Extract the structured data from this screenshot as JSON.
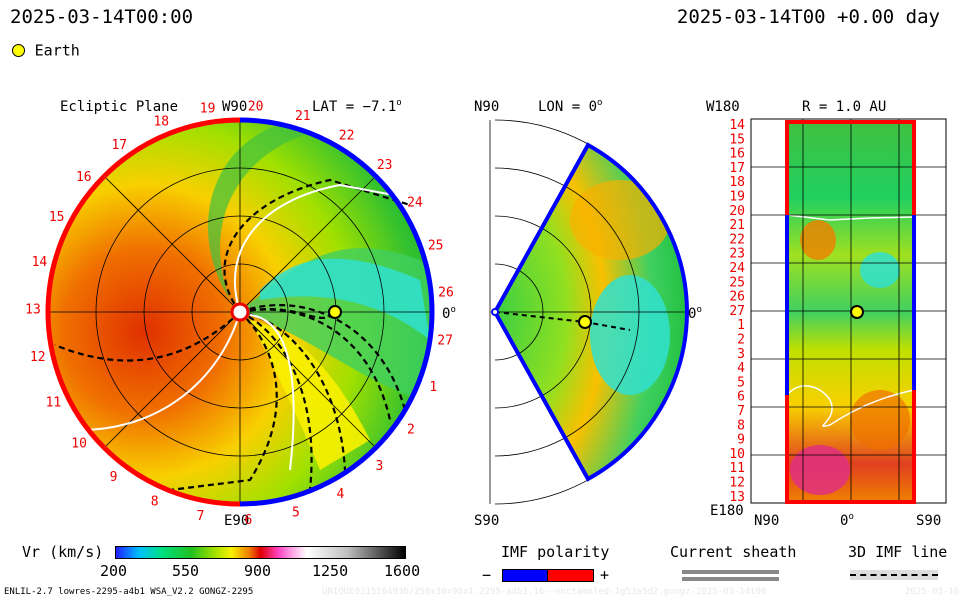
{
  "header": {
    "datetime_left": "2025-03-14T00:00",
    "datetime_right": "2025-03-14T00 +0.00 day"
  },
  "legend": {
    "earth_label": "Earth",
    "earth_color": "#ffff00"
  },
  "panels": {
    "ecliptic": {
      "title": "Ecliptic Plane",
      "lat_label": "LAT = −7.1",
      "lat_sup": "o",
      "top_label": "W90",
      "bottom_label": "E90",
      "right_label": "0",
      "right_sup": "o",
      "carrington_labels": [
        "19",
        "20",
        "21",
        "22",
        "23",
        "24",
        "25",
        "26",
        "27",
        "1",
        "2",
        "3",
        "4",
        "5",
        "6",
        "7",
        "8",
        "9",
        "10",
        "11",
        "12",
        "13",
        "14",
        "15",
        "16",
        "17",
        "18"
      ]
    },
    "meridional": {
      "top_left": "N90",
      "title": "LON = 0",
      "title_sup": "o",
      "bottom_left": "S90",
      "right_label": "0",
      "right_sup": "o"
    },
    "radial": {
      "top_left": "W180",
      "title": "R = 1.0 AU",
      "bottom_left": "E180",
      "x_left": "N90",
      "x_mid": "0",
      "x_mid_sup": "o",
      "x_right": "S90",
      "y_labels": [
        "14",
        "15",
        "16",
        "17",
        "18",
        "19",
        "20",
        "21",
        "22",
        "23",
        "24",
        "25",
        "26",
        "27",
        "1",
        "2",
        "3",
        "4",
        "5",
        "6",
        "7",
        "8",
        "9",
        "10",
        "11",
        "12",
        "13"
      ]
    }
  },
  "colorbar": {
    "label": "Vr (km/s)",
    "ticks": [
      "200",
      "550",
      "900",
      "1250",
      "1600"
    ]
  },
  "imf_polarity": {
    "label": "IMF polarity",
    "minus": "−",
    "plus": "+",
    "neg_color": "#0000ff",
    "pos_color": "#ff0000"
  },
  "current_sheath": {
    "label": "Current sheath"
  },
  "imf_line": {
    "label": "3D IMF line"
  },
  "footer": {
    "model_info": "ENLIL-2.7 lowres-2295-a4b1 WSA_V2.2 GONGZ-2295",
    "run_id": "UNIQUE0315164936/256x30x90x1.2295-a4b1.16--enctamnled-1g53a5d2.gongz-2025-03-14t00",
    "date_right": "2025-03-16"
  }
}
